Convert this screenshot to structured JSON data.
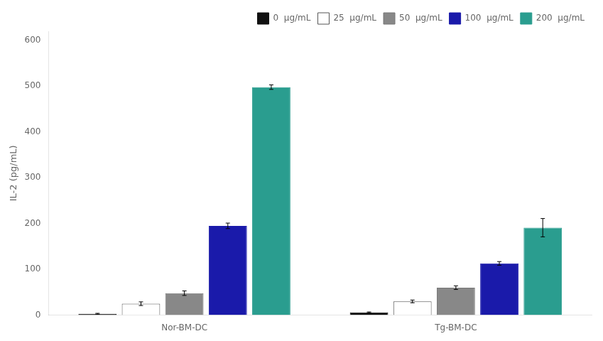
{
  "chart_data": {
    "type": "bar",
    "categories": [
      "Nor-BM-DC",
      "Tg-BM-DC"
    ],
    "series": [
      {
        "name": "0  μg/mL",
        "color": "#111111",
        "values": [
          3,
          6
        ],
        "errors": [
          1,
          1
        ]
      },
      {
        "name": "25  μg/mL",
        "color": "#ffffff",
        "values": [
          25,
          30
        ],
        "errors": [
          4,
          3
        ]
      },
      {
        "name": "50  μg/mL",
        "color": "#888888",
        "values": [
          48,
          60
        ],
        "errors": [
          5,
          4
        ]
      },
      {
        "name": "100  μg/mL",
        "color": "#1a1aaa",
        "values": [
          195,
          113
        ],
        "errors": [
          6,
          4
        ]
      },
      {
        "name": "200  μg/mL",
        "color": "#2a9d8f",
        "values": [
          498,
          191
        ],
        "errors": [
          5,
          20
        ]
      }
    ],
    "y_label": "IL-2 (pg/mL)",
    "ylim": [
      0,
      620
    ],
    "yticks": [
      0,
      100,
      200,
      300,
      400,
      500,
      600
    ],
    "grid": false,
    "legend": "upper right"
  }
}
